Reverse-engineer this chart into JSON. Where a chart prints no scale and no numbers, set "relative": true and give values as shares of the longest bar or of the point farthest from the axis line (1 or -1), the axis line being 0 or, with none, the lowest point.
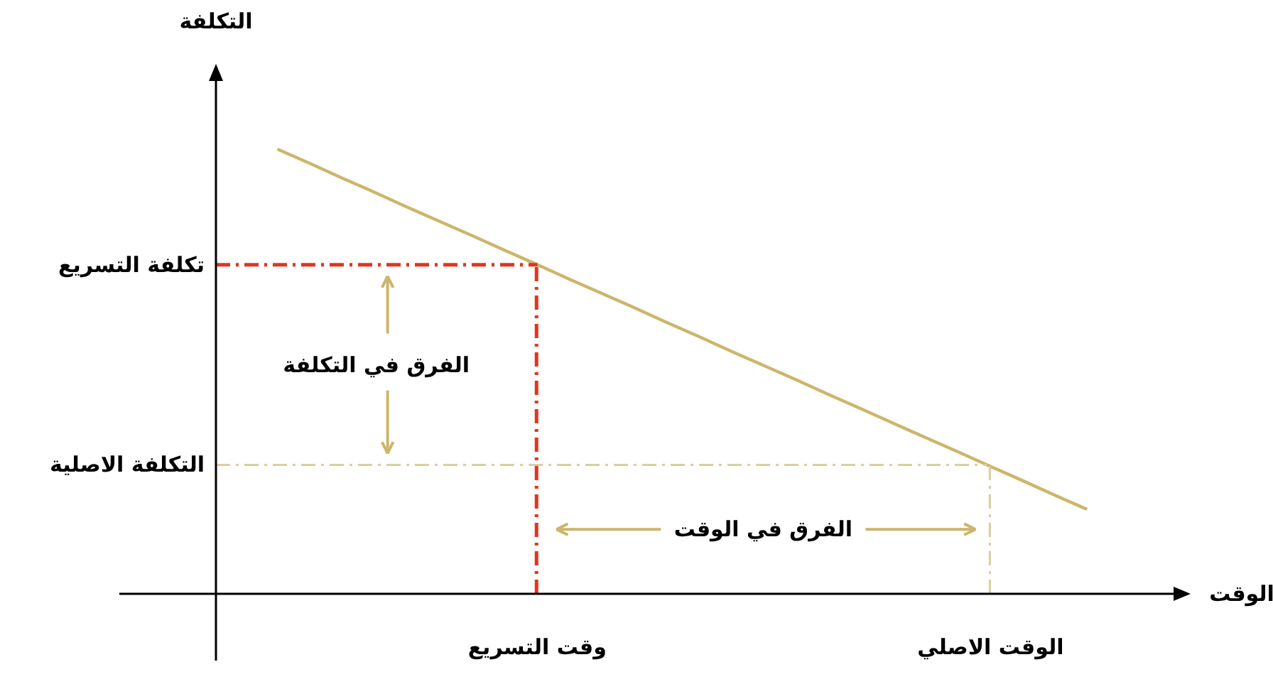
{
  "chart_data": {
    "type": "line",
    "relative": true,
    "categories": [
      null,
      null,
      null,
      null,
      null,
      null,
      null,
      null,
      "وقت التسريع",
      null,
      null,
      null,
      null,
      null,
      null,
      null,
      null,
      null,
      null,
      null,
      null,
      null,
      "الوقت الاصلي",
      null,
      null,
      null
    ],
    "series": [
      {
        "color": "#cdb56c",
        "values": [
          1,
          0.968,
          0.935,
          0.903,
          0.87,
          0.838,
          0.806,
          0.773,
          0.741,
          0.708,
          0.676,
          0.644,
          0.611,
          0.579,
          0.546,
          0.514,
          0.482,
          0.449,
          0.417,
          0.384,
          0.352,
          0.32,
          0.287,
          0.255,
          0.222,
          0.19
        ]
      }
    ],
    "ref_lines": [
      {
        "axis": "y",
        "value": 0.74,
        "label": "تكلفة التسريع",
        "color": "#e5341c",
        "line_style": "dashed"
      },
      {
        "axis": "x",
        "value": "وقت التسريع",
        "color": "#e5341c",
        "line_style": "dashed"
      },
      {
        "axis": "y",
        "value": 0.29,
        "label": "التكلفة  الاصلية",
        "color": "#d9cf9e",
        "line_style": "dashed"
      },
      {
        "axis": "x",
        "value": "الوقت الاصلي",
        "color": "#d9cf9e",
        "line_style": "dashed"
      }
    ],
    "annotations": [
      "الفرق في التكلفة",
      "الفرق في الوقت",
      "التكلفة",
      "الوقت"
    ],
    "grid": false,
    "marker": "none",
    "line_style": "solid"
  }
}
